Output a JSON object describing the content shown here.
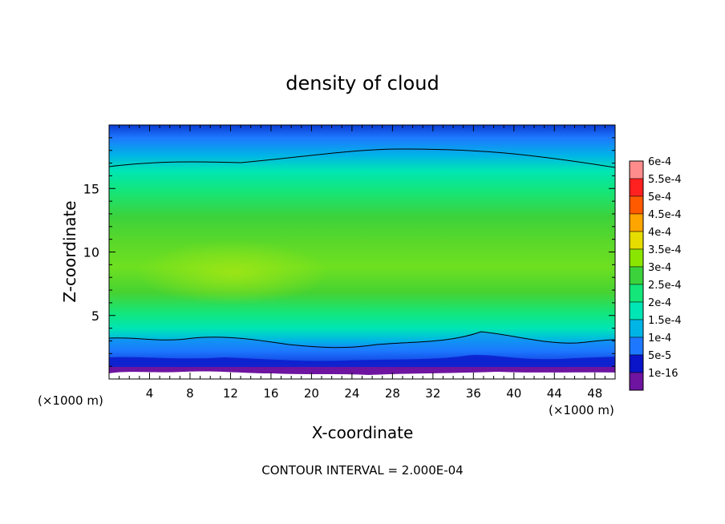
{
  "chart_data": {
    "type": "heatmap",
    "title": "density of cloud",
    "xlabel": "X-coordinate",
    "ylabel": "Z-coordinate",
    "x_unit_left": "(×1000 m)",
    "x_unit_right": "(×1000 m)",
    "footer": "CONTOUR INTERVAL = 2.000E-04",
    "xlim": [
      0,
      50
    ],
    "ylim": [
      0,
      20
    ],
    "xticks": [
      4,
      8,
      12,
      16,
      20,
      24,
      28,
      32,
      36,
      40,
      44,
      48
    ],
    "yticks": [
      5,
      10,
      15
    ],
    "colorbar": {
      "labels": [
        "6e-4",
        "5.5e-4",
        "5e-4",
        "4.5e-4",
        "4e-4",
        "3.5e-4",
        "3e-4",
        "2.5e-4",
        "2e-4",
        "1.5e-4",
        "1e-4",
        "5e-5",
        "1e-16"
      ],
      "values": [
        0.0006,
        0.00055,
        0.0005,
        0.00045,
        0.0004,
        0.00035,
        0.0003,
        0.00025,
        0.0002,
        0.00015,
        0.0001,
        5e-05,
        1e-16
      ],
      "colors": [
        "#ff8c8c",
        "#ff2020",
        "#ff5a00",
        "#ffa500",
        "#e6dc00",
        "#8ae600",
        "#3cd23c",
        "#14e67a",
        "#00e6b4",
        "#00b4e6",
        "#1e78ff",
        "#0a14c8",
        "#6e14a0"
      ]
    },
    "contour_lines": [
      {
        "level": 0.0002,
        "z_top_approx": 17,
        "z_bottom_approx": 3
      }
    ],
    "profile_z": [
      0,
      0.6,
      1.2,
      2.0,
      2.8,
      3.5,
      5,
      7,
      9,
      11,
      13,
      15,
      16.5,
      17.5,
      18.5,
      19.5
    ],
    "profile_density": [
      0.0,
      5e-05,
      0.0001,
      0.00015,
      0.0002,
      0.00025,
      0.0003,
      0.00035,
      0.00037,
      0.00034,
      0.0003,
      0.00026,
      0.00021,
      0.00018,
      0.00014,
      0.0001
    ]
  }
}
